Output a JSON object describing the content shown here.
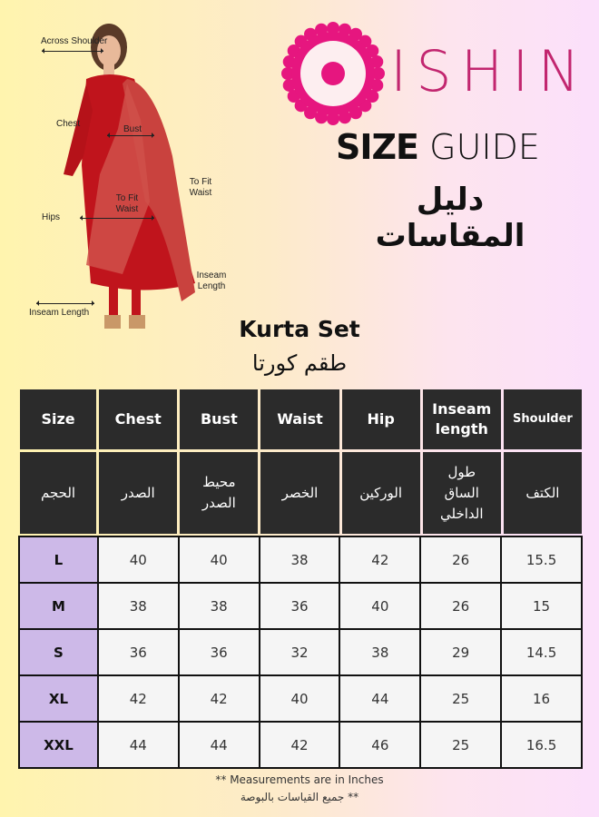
{
  "brand": {
    "logo_text": "ISHIN",
    "color": "#e6167f"
  },
  "title": {
    "bold": "SIZE",
    "light": "GUIDE",
    "arabic": "دليل المقاسات"
  },
  "product": {
    "name": "Kurta Set",
    "name_ar": "طقم كورتا"
  },
  "figure_labels": {
    "across_shoulder": "Across Shoulder",
    "chest": "Chest",
    "bust": "Bust",
    "to_fit_waist_right": "To Fit Waist",
    "to_fit_waist_center": "To Fit Waist",
    "hips": "Hips",
    "inseam_length_right": "Inseam Length",
    "inseam_length_left": "Inseam Length"
  },
  "table": {
    "headers": [
      "Size",
      "Chest",
      "Bust",
      "Waist",
      "Hip",
      "Inseam length",
      "Shoulder"
    ],
    "headers_ar": [
      "الحجم",
      "الصدر",
      "محيط الصدر",
      "الخصر",
      "الوركين",
      "طول الساق الداخلي",
      "الكتف"
    ],
    "rows": [
      [
        "L",
        "40",
        "40",
        "38",
        "42",
        "26",
        "15.5"
      ],
      [
        "M",
        "38",
        "38",
        "36",
        "40",
        "26",
        "15"
      ],
      [
        "S",
        "36",
        "36",
        "32",
        "38",
        "29",
        "14.5"
      ],
      [
        "XL",
        "42",
        "42",
        "40",
        "44",
        "25",
        "16"
      ],
      [
        "XXL",
        "44",
        "44",
        "42",
        "46",
        "25",
        "16.5"
      ]
    ],
    "colors": {
      "header_bg": "#2b2b2b",
      "size_cell_bg": "#cdb9e8",
      "cell_bg": "#f5f5f5"
    }
  },
  "notes": {
    "en": "** Measurements are in Inches",
    "ar": "** جميع القياسات بالبوصة"
  }
}
